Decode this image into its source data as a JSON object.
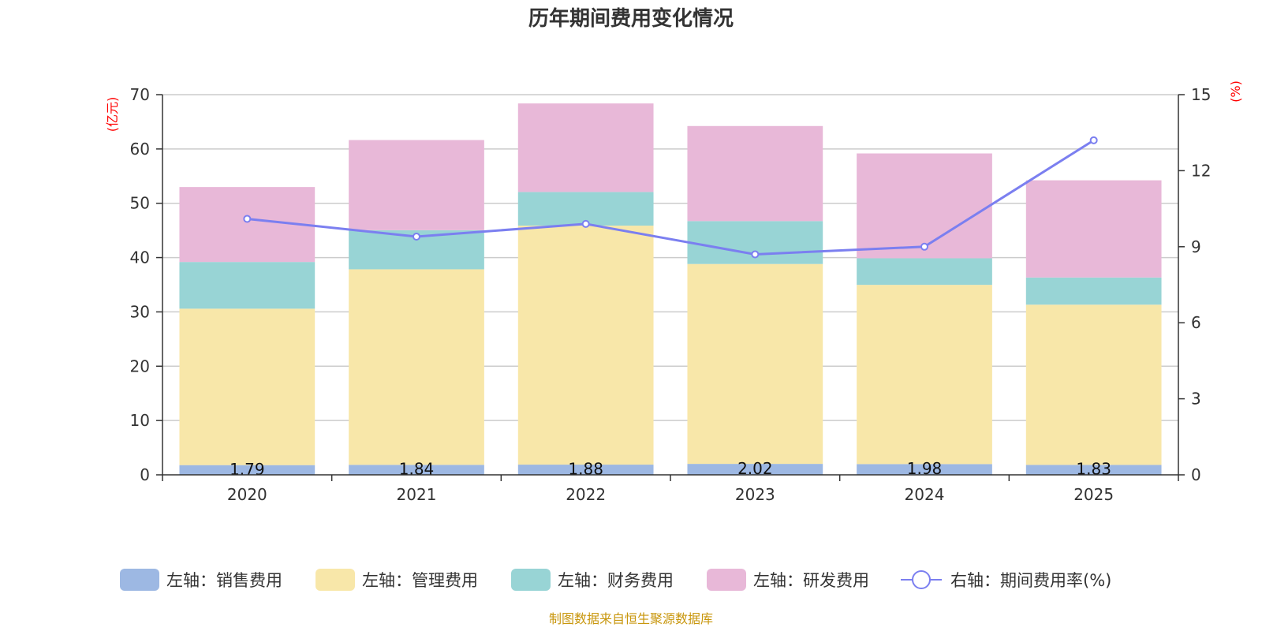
{
  "chart_data": {
    "type": "bar",
    "stacked": true,
    "title": "历年期间费用变化情况",
    "categories": [
      "2020",
      "2021",
      "2022",
      "2023",
      "2024",
      "2025"
    ],
    "left_axis": {
      "unit": "(亿元)",
      "ylim": [
        0,
        70
      ],
      "ticks": [
        0,
        10,
        20,
        30,
        40,
        50,
        60,
        70
      ]
    },
    "right_axis": {
      "unit": "(%)",
      "ylim": [
        0,
        15
      ],
      "ticks": [
        0,
        3,
        6,
        9,
        12,
        15
      ]
    },
    "series": [
      {
        "name": "左轴：销售费用",
        "axis": "left",
        "color": "#9db8e3",
        "values": [
          1.79,
          1.84,
          1.88,
          2.02,
          1.98,
          1.83
        ],
        "labels": [
          "1.79",
          "1.84",
          "1.88",
          "2.02",
          "1.98",
          "1.83"
        ]
      },
      {
        "name": "左轴：管理费用",
        "axis": "left",
        "color": "#f8e7a9",
        "values": [
          28.8,
          36.0,
          44.0,
          36.8,
          33.0,
          29.5
        ]
      },
      {
        "name": "左轴：财务费用",
        "axis": "left",
        "color": "#98d4d5",
        "values": [
          8.6,
          7.2,
          6.2,
          7.9,
          4.9,
          5.0
        ]
      },
      {
        "name": "左轴：研发费用",
        "axis": "left",
        "color": "#e8b8d8",
        "values": [
          13.8,
          16.6,
          16.3,
          17.5,
          19.3,
          17.9
        ]
      }
    ],
    "line": {
      "name": "右轴：期间费用率(%)",
      "axis": "right",
      "color": "#7b7ff0",
      "values": [
        10.1,
        9.4,
        9.9,
        8.7,
        9.0,
        13.2
      ]
    },
    "grid": true,
    "legend_position": "bottom"
  },
  "source": "制图数据来自恒生聚源数据库"
}
